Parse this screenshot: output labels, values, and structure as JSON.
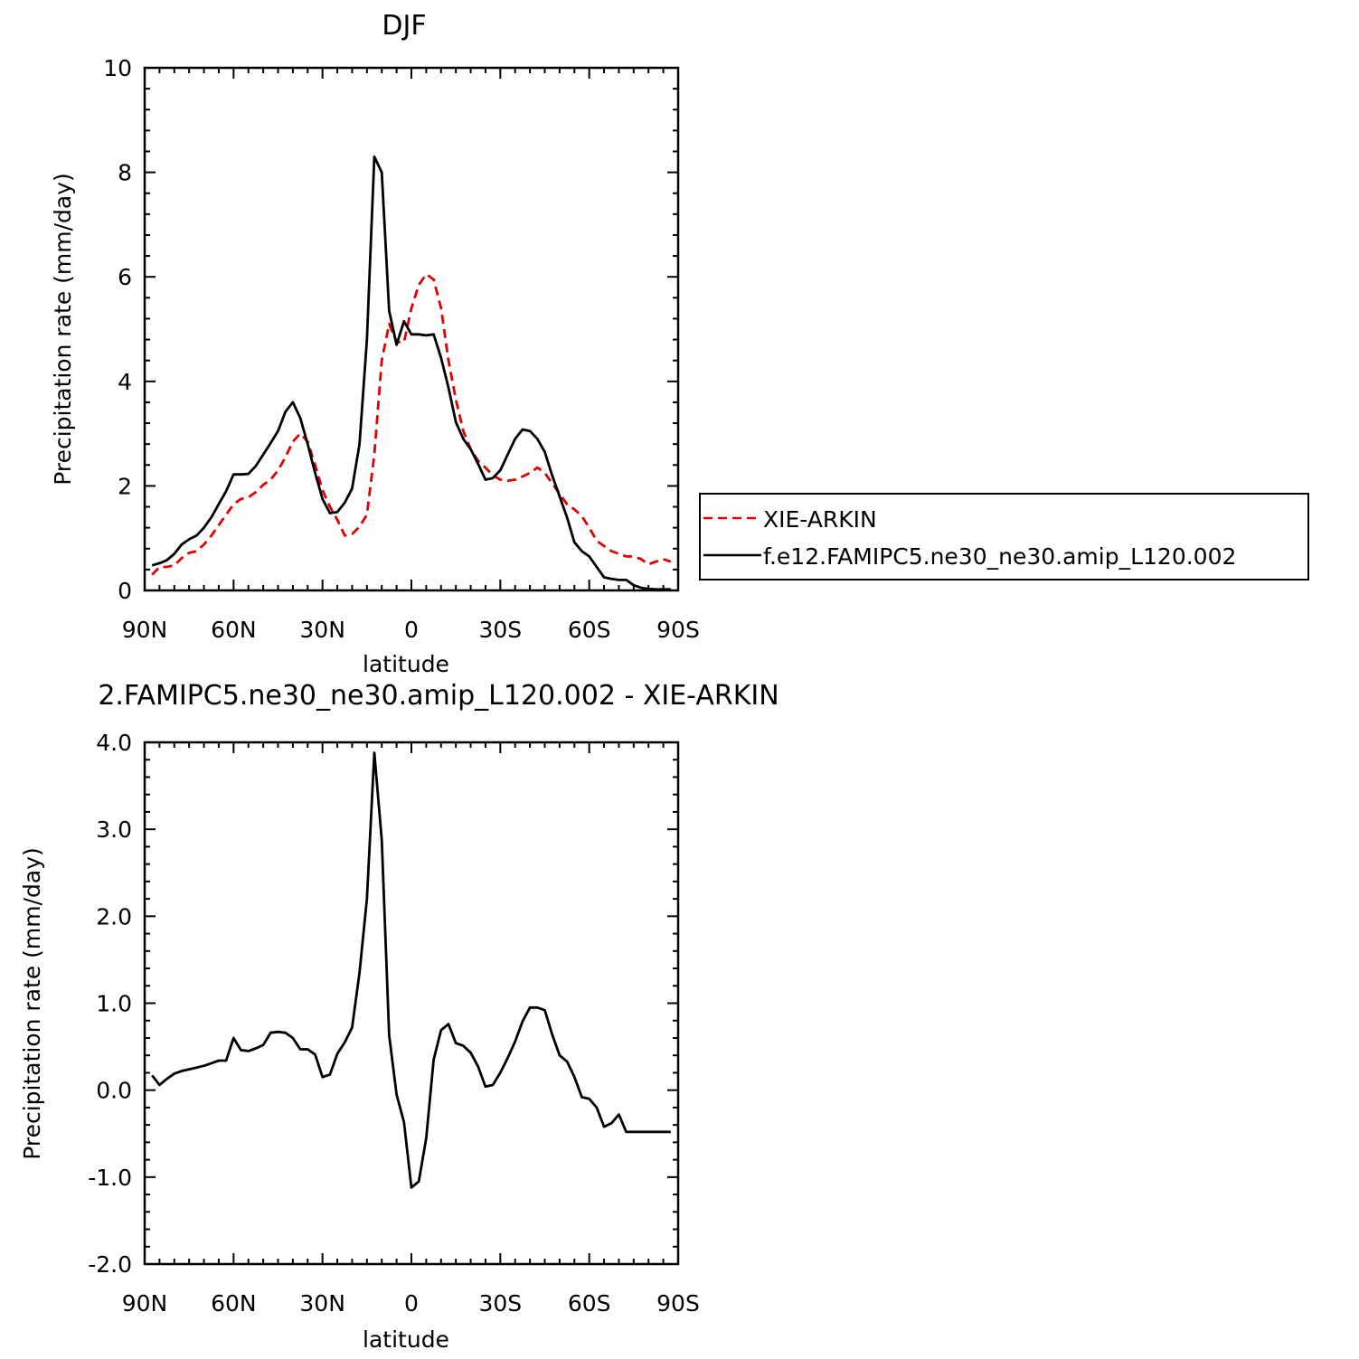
{
  "chart_data": [
    {
      "type": "line",
      "title": "DJF",
      "xlabel": "latitude",
      "ylabel": "Precipitation rate (mm/day)",
      "xlim": [
        -90,
        90
      ],
      "ylim": [
        0,
        10
      ],
      "x_ticks": [
        {
          "value": -90,
          "label": "90N"
        },
        {
          "value": -60,
          "label": "60N"
        },
        {
          "value": -30,
          "label": "30N"
        },
        {
          "value": 0,
          "label": "0"
        },
        {
          "value": 30,
          "label": "30S"
        },
        {
          "value": 60,
          "label": "60S"
        },
        {
          "value": 90,
          "label": "90S"
        }
      ],
      "y_ticks": [
        {
          "value": 0,
          "label": "0"
        },
        {
          "value": 2,
          "label": "2"
        },
        {
          "value": 4,
          "label": "4"
        },
        {
          "value": 6,
          "label": "6"
        },
        {
          "value": 8,
          "label": "8"
        },
        {
          "value": 10,
          "label": "10"
        }
      ],
      "legend_position": "right",
      "series": [
        {
          "name": "XIE-ARKIN",
          "color": "#e00000",
          "dash": "dashed",
          "x": [
            -87.5,
            -85,
            -82.5,
            -80,
            -77.5,
            -75,
            -72.5,
            -70,
            -67.5,
            -65,
            -62.5,
            -60,
            -57.5,
            -55,
            -52.5,
            -50,
            -47.5,
            -45,
            -42.5,
            -40,
            -37.5,
            -35,
            -32.5,
            -30,
            -27.5,
            -25,
            -22.5,
            -20,
            -17.5,
            -15,
            -12.5,
            -10,
            -7.5,
            -5,
            -2.5,
            0,
            2.5,
            5,
            7.5,
            10,
            12.5,
            15,
            17.5,
            20,
            22.5,
            25,
            27.5,
            30,
            32.5,
            35,
            37.5,
            40,
            42.5,
            45,
            47.5,
            50,
            52.5,
            55,
            57.5,
            60,
            62.5,
            65,
            67.5,
            70,
            72.5,
            75,
            77.5,
            80,
            82.5,
            85,
            87.5
          ],
          "values": [
            0.3,
            0.45,
            0.45,
            0.48,
            0.62,
            0.72,
            0.75,
            0.88,
            1.05,
            1.25,
            1.45,
            1.65,
            1.75,
            1.78,
            1.88,
            2.02,
            2.12,
            2.3,
            2.55,
            2.85,
            3.0,
            2.85,
            2.4,
            1.92,
            1.6,
            1.35,
            1.05,
            1.08,
            1.22,
            1.45,
            2.6,
            4.4,
            5.1,
            4.75,
            4.75,
            5.4,
            5.85,
            6.05,
            5.95,
            5.4,
            4.4,
            3.65,
            3.05,
            2.7,
            2.48,
            2.35,
            2.2,
            2.12,
            2.1,
            2.12,
            2.18,
            2.25,
            2.35,
            2.25,
            2.05,
            1.85,
            1.65,
            1.55,
            1.42,
            1.2,
            0.95,
            0.85,
            0.75,
            0.7,
            0.65,
            0.65,
            0.6,
            0.5,
            0.55,
            0.6,
            0.55
          ]
        },
        {
          "name": "f.e12.FAMIPC5.ne30_ne30.amip_L120.002",
          "color": "#000000",
          "dash": "solid",
          "x": [
            -87.5,
            -85,
            -82.5,
            -80,
            -77.5,
            -75,
            -72.5,
            -70,
            -67.5,
            -65,
            -62.5,
            -60,
            -57.5,
            -55,
            -52.5,
            -50,
            -47.5,
            -45,
            -42.5,
            -40,
            -37.5,
            -35,
            -32.5,
            -30,
            -27.5,
            -25,
            -22.5,
            -20,
            -17.5,
            -15,
            -12.5,
            -10,
            -7.5,
            -5,
            -2.5,
            0,
            2.5,
            5,
            7.5,
            10,
            12.5,
            15,
            17.5,
            20,
            22.5,
            25,
            27.5,
            30,
            32.5,
            35,
            37.5,
            40,
            42.5,
            45,
            47.5,
            50,
            52.5,
            55,
            57.5,
            60,
            62.5,
            65,
            67.5,
            70,
            72.5,
            75,
            77.5,
            80,
            82.5,
            85,
            87.5
          ],
          "values": [
            0.48,
            0.52,
            0.58,
            0.7,
            0.88,
            0.98,
            1.05,
            1.2,
            1.4,
            1.65,
            1.9,
            2.22,
            2.22,
            2.23,
            2.38,
            2.6,
            2.82,
            3.05,
            3.42,
            3.6,
            3.3,
            2.8,
            2.25,
            1.75,
            1.48,
            1.5,
            1.68,
            1.95,
            2.8,
            4.8,
            8.3,
            8.0,
            5.35,
            4.7,
            5.15,
            4.9,
            4.9,
            4.88,
            4.9,
            4.45,
            3.88,
            3.22,
            2.9,
            2.7,
            2.42,
            2.12,
            2.15,
            2.3,
            2.6,
            2.9,
            3.08,
            3.05,
            2.9,
            2.65,
            2.2,
            1.8,
            1.4,
            0.92,
            0.75,
            0.65,
            0.45,
            0.25,
            0.22,
            0.2,
            0.2,
            0.1,
            0.05,
            0.03,
            0.02,
            0.02,
            0.02
          ]
        }
      ]
    },
    {
      "type": "line",
      "title": "2.FAMIPC5.ne30_ne30.amip_L120.002 - XIE-ARKIN",
      "xlabel": "latitude",
      "ylabel": "Precipitation rate (mm/day)",
      "xlim": [
        -90,
        90
      ],
      "ylim": [
        -2.0,
        4.0
      ],
      "x_ticks": [
        {
          "value": -90,
          "label": "90N"
        },
        {
          "value": -60,
          "label": "60N"
        },
        {
          "value": -30,
          "label": "30N"
        },
        {
          "value": 0,
          "label": "0"
        },
        {
          "value": 30,
          "label": "30S"
        },
        {
          "value": 60,
          "label": "60S"
        },
        {
          "value": 90,
          "label": "90S"
        }
      ],
      "y_ticks": [
        {
          "value": -2.0,
          "label": "-2.0"
        },
        {
          "value": -1.0,
          "label": "-1.0"
        },
        {
          "value": 0.0,
          "label": "0.0"
        },
        {
          "value": 1.0,
          "label": "1.0"
        },
        {
          "value": 2.0,
          "label": "2.0"
        },
        {
          "value": 3.0,
          "label": "3.0"
        },
        {
          "value": 4.0,
          "label": "4.0"
        }
      ],
      "series": [
        {
          "color": "#000000",
          "dash": "solid",
          "x": [
            -87.5,
            -85,
            -82.5,
            -80,
            -77.5,
            -75,
            -72.5,
            -70,
            -67.5,
            -65,
            -62.5,
            -60,
            -57.5,
            -55,
            -52.5,
            -50,
            -47.5,
            -45,
            -42.5,
            -40,
            -37.5,
            -35,
            -32.5,
            -30,
            -27.5,
            -25,
            -22.5,
            -20,
            -17.5,
            -15,
            -12.5,
            -10,
            -7.5,
            -5,
            -2.5,
            0,
            2.5,
            5,
            7.5,
            10,
            12.5,
            15,
            17.5,
            20,
            22.5,
            25,
            27.5,
            30,
            32.5,
            35,
            37.5,
            40,
            42.5,
            45,
            47.5,
            50,
            52.5,
            55,
            57.5,
            60,
            62.5,
            65,
            67.5,
            70,
            72.5,
            75,
            77.5,
            80,
            82.5,
            85,
            87.5
          ],
          "values": [
            0.17,
            0.06,
            0.13,
            0.19,
            0.22,
            0.24,
            0.26,
            0.28,
            0.31,
            0.34,
            0.34,
            0.6,
            0.46,
            0.45,
            0.48,
            0.52,
            0.66,
            0.67,
            0.66,
            0.6,
            0.47,
            0.47,
            0.41,
            0.15,
            0.18,
            0.42,
            0.55,
            0.72,
            1.35,
            2.2,
            3.88,
            2.88,
            0.63,
            -0.05,
            -0.37,
            -1.12,
            -1.05,
            -0.55,
            0.35,
            0.69,
            0.76,
            0.54,
            0.51,
            0.43,
            0.27,
            0.04,
            0.06,
            0.2,
            0.37,
            0.56,
            0.79,
            0.95,
            0.95,
            0.92,
            0.64,
            0.4,
            0.33,
            0.15,
            -0.08,
            -0.1,
            -0.2,
            -0.42,
            -0.38,
            -0.28,
            -0.48,
            -0.48,
            -0.48,
            -0.48,
            -0.48,
            -0.48,
            -0.48
          ]
        }
      ]
    }
  ]
}
